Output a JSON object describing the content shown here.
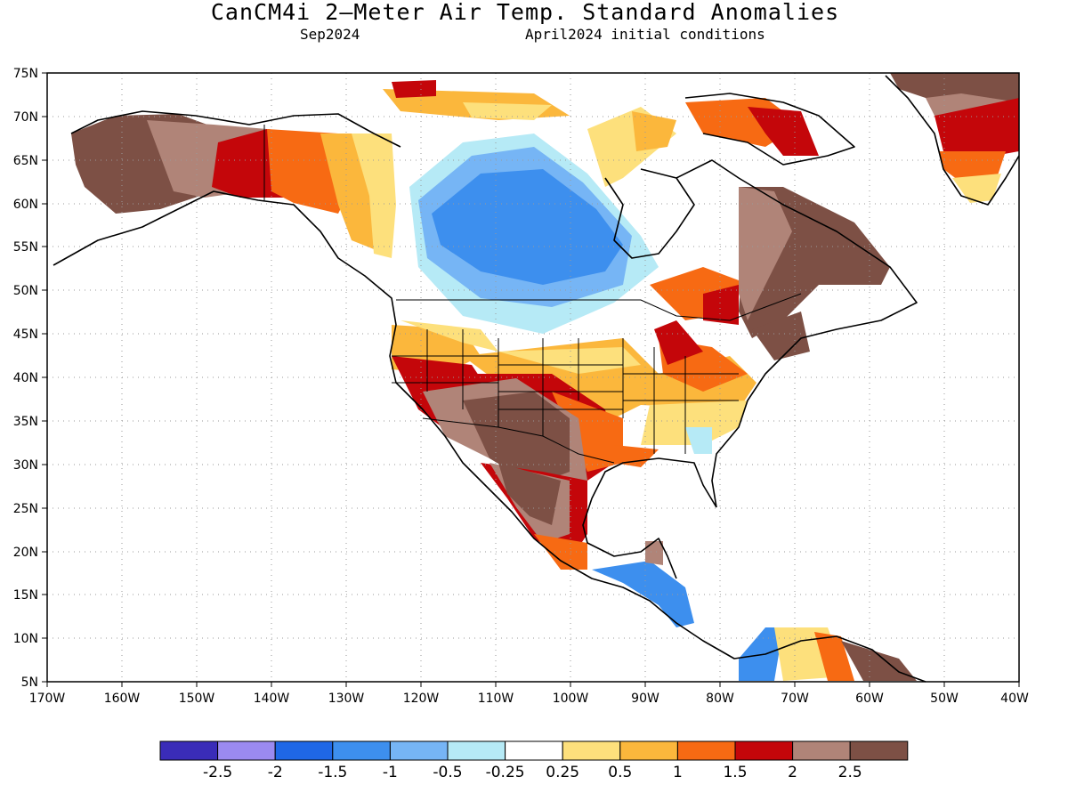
{
  "title": "CanCM4i 2—Meter Air Temp. Standard Anomalies",
  "subtitle_left": "Sep2024",
  "subtitle_right": "April2024 initial conditions",
  "map": {
    "lat_labels": [
      "75N",
      "70N",
      "65N",
      "60N",
      "55N",
      "50N",
      "45N",
      "40N",
      "35N",
      "30N",
      "25N",
      "20N",
      "15N",
      "10N",
      "5N"
    ],
    "lon_labels": [
      "170W",
      "160W",
      "150W",
      "140W",
      "130W",
      "120W",
      "110W",
      "100W",
      "90W",
      "80W",
      "70W",
      "60W",
      "50W",
      "40W"
    ],
    "lat_range": [
      5,
      75
    ],
    "lon_range": [
      -170,
      -40
    ],
    "grid": "dotted"
  },
  "legend": {
    "bins": [
      {
        "color": "#3a2cb8"
      },
      {
        "color": "#9b8af0"
      },
      {
        "color": "#1f67e6"
      },
      {
        "color": "#3d8fee"
      },
      {
        "color": "#76b5f5"
      },
      {
        "color": "#b6eaf6"
      },
      {
        "color": "#ffffff"
      },
      {
        "color": "#fde07c"
      },
      {
        "color": "#fbb73c"
      },
      {
        "color": "#f76a13"
      },
      {
        "color": "#c4060a"
      },
      {
        "color": "#b08478"
      },
      {
        "color": "#7d5045"
      }
    ],
    "labels": [
      "-2.5",
      "-2",
      "-1.5",
      "-1",
      "-0.5",
      "-0.25",
      "0.25",
      "0.5",
      "1",
      "1.5",
      "2",
      "2.5"
    ]
  }
}
